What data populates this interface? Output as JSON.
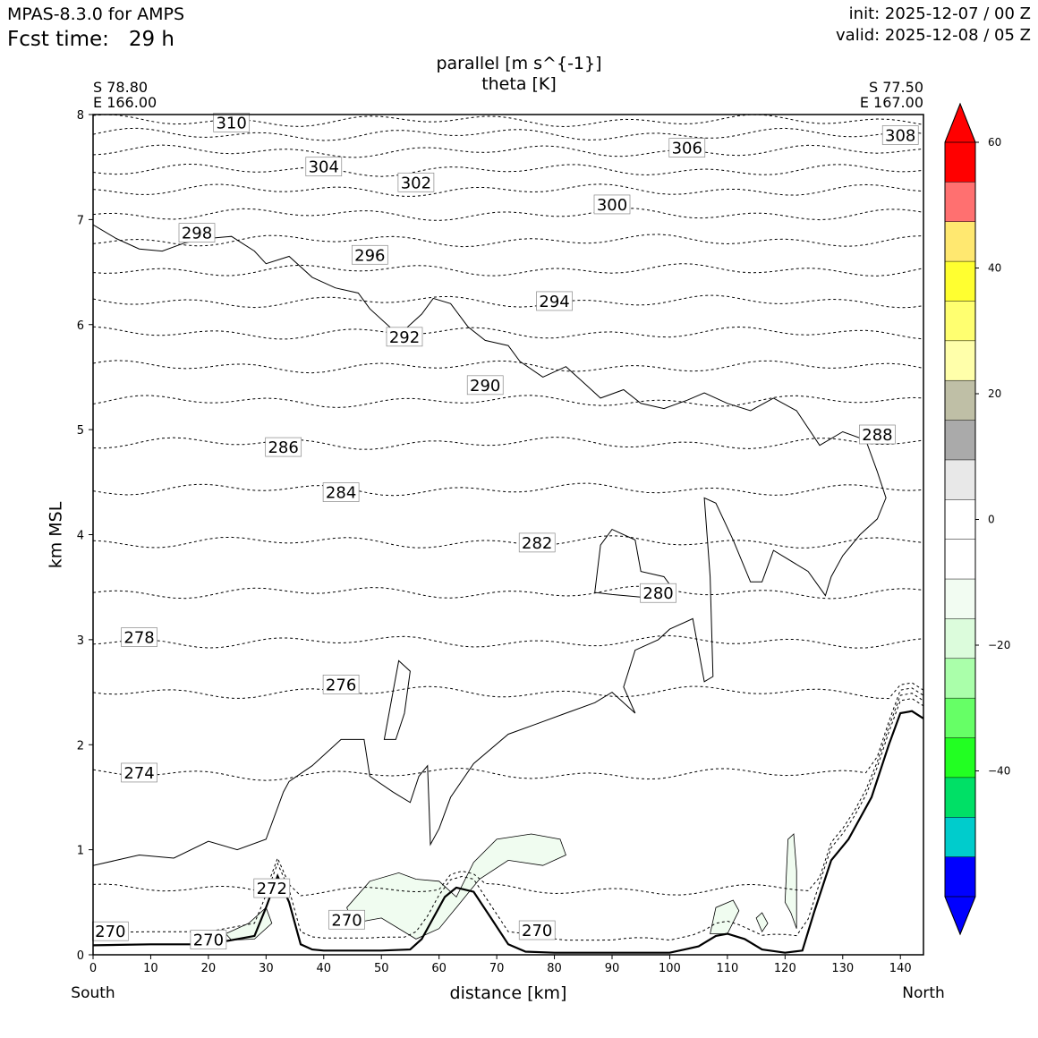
{
  "header": {
    "model": "MPAS-8.3.0 for AMPS",
    "fcst_time": "Fcst time:   29 h",
    "init": "init: 2025-12-07 / 00 Z",
    "valid": "valid: 2025-12-08 / 05 Z"
  },
  "endpoints": {
    "left_lat": "S 78.80",
    "left_lon": "E 166.00",
    "right_lat": "S 77.50",
    "right_lon": "E 167.00"
  },
  "direction": {
    "left": "South",
    "right": "North"
  },
  "colors": {
    "terrain": "#000000",
    "contour": "#000000",
    "wind_fill_neg": "#f0fcf0"
  },
  "chart_data": {
    "type": "cross-section contour",
    "title": "parallel [m s^{-1}]",
    "subtitle": "theta [K]",
    "xlabel": "distance [km]",
    "ylabel": "km MSL",
    "xlim": [
      0,
      144
    ],
    "ylim": [
      0,
      8
    ],
    "x_ticks": [
      "0",
      "10",
      "20",
      "30",
      "40",
      "50",
      "60",
      "70",
      "80",
      "90",
      "100",
      "110",
      "120",
      "130",
      "140"
    ],
    "y_ticks": [
      "0",
      "1",
      "2",
      "3",
      "4",
      "5",
      "6",
      "7",
      "8"
    ],
    "theta_levels": [
      {
        "value": 270,
        "label": "270",
        "z": 0.15
      },
      {
        "value": 272,
        "label": "272",
        "z": 0.62
      },
      {
        "value": 274,
        "label": "274",
        "z": 1.72
      },
      {
        "value": 276,
        "label": "276",
        "z": 2.5
      },
      {
        "value": 278,
        "label": "278",
        "z": 2.98
      },
      {
        "value": 280,
        "label": "280",
        "z": 3.45
      },
      {
        "value": 282,
        "label": "282",
        "z": 3.93
      },
      {
        "value": 284,
        "label": "284",
        "z": 4.43
      },
      {
        "value": 286,
        "label": "286",
        "z": 4.87
      },
      {
        "value": 288,
        "label": "288",
        "z": 5.27
      },
      {
        "value": 290,
        "label": "290",
        "z": 5.6
      },
      {
        "value": 292,
        "label": "292",
        "z": 5.92
      },
      {
        "value": 294,
        "label": "294",
        "z": 6.22
      },
      {
        "value": 296,
        "label": "296",
        "z": 6.52
      },
      {
        "value": 298,
        "label": "298",
        "z": 6.8
      },
      {
        "value": 300,
        "label": "300",
        "z": 7.05
      },
      {
        "value": 302,
        "label": "302",
        "z": 7.28
      },
      {
        "value": 304,
        "label": "304",
        "z": 7.47
      },
      {
        "value": 306,
        "label": "306",
        "z": 7.65
      },
      {
        "value": 308,
        "label": "308",
        "z": 7.81
      },
      {
        "value": 310,
        "label": "310",
        "z": 7.94
      }
    ],
    "theta_label_positions_data_units": [
      {
        "label": "310",
        "x": 24,
        "z": 7.92
      },
      {
        "label": "308",
        "x": 140,
        "z": 7.8
      },
      {
        "label": "306",
        "x": 103,
        "z": 7.68
      },
      {
        "label": "304",
        "x": 40,
        "z": 7.5
      },
      {
        "label": "302",
        "x": 56,
        "z": 7.35
      },
      {
        "label": "300",
        "x": 90,
        "z": 7.14
      },
      {
        "label": "298",
        "x": 18,
        "z": 6.87
      },
      {
        "label": "296",
        "x": 48,
        "z": 6.66
      },
      {
        "label": "294",
        "x": 80,
        "z": 6.22
      },
      {
        "label": "292",
        "x": 54,
        "z": 5.88
      },
      {
        "label": "290",
        "x": 68,
        "z": 5.42
      },
      {
        "label": "288",
        "x": 136,
        "z": 4.95
      },
      {
        "label": "286",
        "x": 33,
        "z": 4.83
      },
      {
        "label": "284",
        "x": 43,
        "z": 4.4
      },
      {
        "label": "282",
        "x": 77,
        "z": 3.92
      },
      {
        "label": "280",
        "x": 98,
        "z": 3.44
      },
      {
        "label": "278",
        "x": 8,
        "z": 3.02
      },
      {
        "label": "276",
        "x": 43,
        "z": 2.57
      },
      {
        "label": "274",
        "x": 8,
        "z": 1.73
      },
      {
        "label": "272",
        "x": 31,
        "z": 0.63
      },
      {
        "label": "270",
        "x": 44,
        "z": 0.33
      },
      {
        "label": "270",
        "x": 77,
        "z": 0.23
      },
      {
        "label": "270",
        "x": 3,
        "z": 0.22
      },
      {
        "label": "270",
        "x": 20,
        "z": 0.14
      }
    ],
    "terrain_km": {
      "x": [
        0,
        10,
        20,
        28,
        30,
        32,
        34,
        36,
        38,
        40,
        50,
        55,
        57,
        59,
        61,
        63,
        66,
        69,
        72,
        75,
        80,
        90,
        100,
        105,
        108,
        110,
        113,
        116,
        120,
        123,
        125,
        128,
        131,
        135,
        138,
        140,
        142,
        144
      ],
      "z": [
        0.09,
        0.1,
        0.1,
        0.18,
        0.45,
        0.75,
        0.5,
        0.1,
        0.05,
        0.04,
        0.04,
        0.05,
        0.15,
        0.35,
        0.55,
        0.64,
        0.6,
        0.35,
        0.1,
        0.03,
        0.02,
        0.02,
        0.02,
        0.08,
        0.18,
        0.2,
        0.15,
        0.05,
        0.02,
        0.04,
        0.4,
        0.9,
        1.1,
        1.5,
        2.0,
        2.3,
        2.32,
        2.25
      ]
    },
    "colorbar": {
      "label": "parallel [m s^{-1}]",
      "ticks": [
        "60",
        "40",
        "20",
        "0",
        "−20",
        "−40"
      ],
      "range": [
        -60,
        60
      ],
      "colors_top_to_bottom": [
        "#ff0000",
        "#ff7070",
        "#ffe870",
        "#ffff30",
        "#ffff70",
        "#ffffaa",
        "#bfbfa6",
        "#aaaaaa",
        "#e8e8e8",
        "#ffffff",
        "#ffffff",
        "#f2fcf2",
        "#dcfcdc",
        "#aaffaa",
        "#66ff66",
        "#22ff22",
        "#00e066",
        "#00cccc",
        "#0000ff"
      ]
    }
  }
}
